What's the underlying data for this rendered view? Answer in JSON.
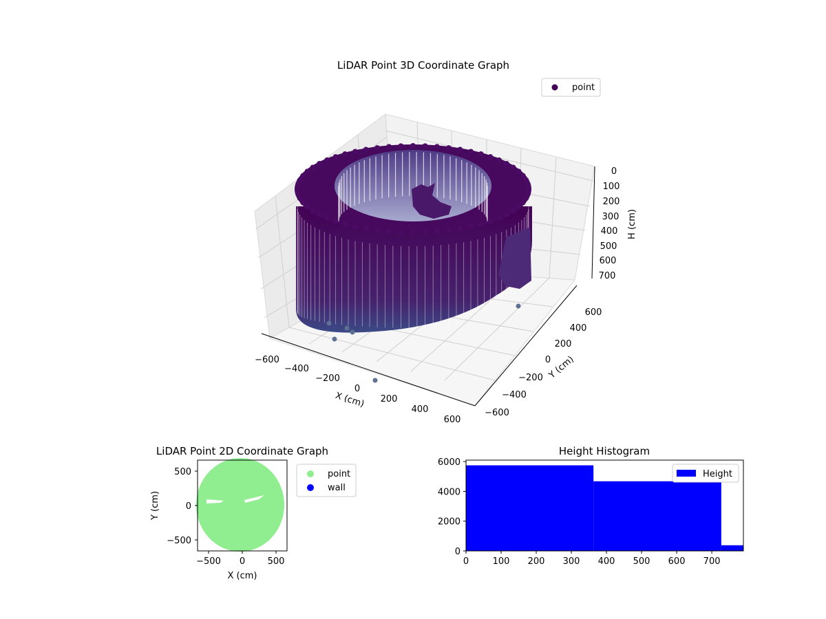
{
  "chart_data": [
    {
      "type": "scatter3d",
      "title": "LiDAR Point 3D Coordinate Graph",
      "xlabel": "X (cm)",
      "ylabel": "Y (cm)",
      "zlabel": "H (cm)",
      "xlim": [
        -650,
        650
      ],
      "ylim": [
        -650,
        650
      ],
      "zlim": [
        0,
        780
      ],
      "x_ticks": [
        "−600",
        "−400",
        "−200",
        "0",
        "200",
        "400",
        "600"
      ],
      "y_ticks": [
        "−600",
        "−400",
        "−200",
        "0",
        "200",
        "400",
        "600"
      ],
      "z_ticks": [
        "0",
        "100",
        "200",
        "300",
        "400",
        "500",
        "600",
        "700"
      ],
      "z_axis_inverted": true,
      "legend": {
        "entries": [
          "point"
        ],
        "placement": "top-right"
      },
      "series": [
        {
          "name": "point",
          "shape": "cylindrical ring of points",
          "outer_radius": 560,
          "inner_radius": 420,
          "height_range": [
            0,
            780
          ]
        }
      ],
      "grid": true,
      "colors": {
        "top": "#440154",
        "bottom": "#3b528b",
        "outlier": "#5f7193"
      }
    },
    {
      "type": "scatter",
      "title": "LiDAR Point 2D Coordinate Graph",
      "xlabel": "X (cm)",
      "ylabel": "Y (cm)",
      "xlim": [
        -660,
        660
      ],
      "ylim": [
        -660,
        660
      ],
      "x_ticks": [
        "−500",
        "0",
        "500"
      ],
      "y_ticks": [
        "500",
        "0",
        "−500"
      ],
      "legend": {
        "entries": [
          "point",
          "wall"
        ],
        "placement": "outside-right"
      },
      "series": [
        {
          "name": "point",
          "color": "#90ee90",
          "shape": "filled disc",
          "radius": 620
        },
        {
          "name": "wall",
          "color": "#0000ff"
        }
      ]
    },
    {
      "type": "bar",
      "title": "Height Histogram",
      "xlabel": "",
      "ylabel": "",
      "xlim": [
        0,
        790
      ],
      "ylim": [
        0,
        6100
      ],
      "x_ticks": [
        "0",
        "100",
        "200",
        "300",
        "400",
        "500",
        "600",
        "700"
      ],
      "y_ticks": [
        "0",
        "2000",
        "4000",
        "6000"
      ],
      "legend": {
        "entries": [
          "Height"
        ],
        "placement": "top-right"
      },
      "bins": [
        {
          "start": 0,
          "end": 363,
          "count": 5750
        },
        {
          "start": 363,
          "end": 727,
          "count": 4680
        },
        {
          "start": 727,
          "end": 790,
          "count": 380
        }
      ],
      "color": "#0000ff"
    }
  ]
}
